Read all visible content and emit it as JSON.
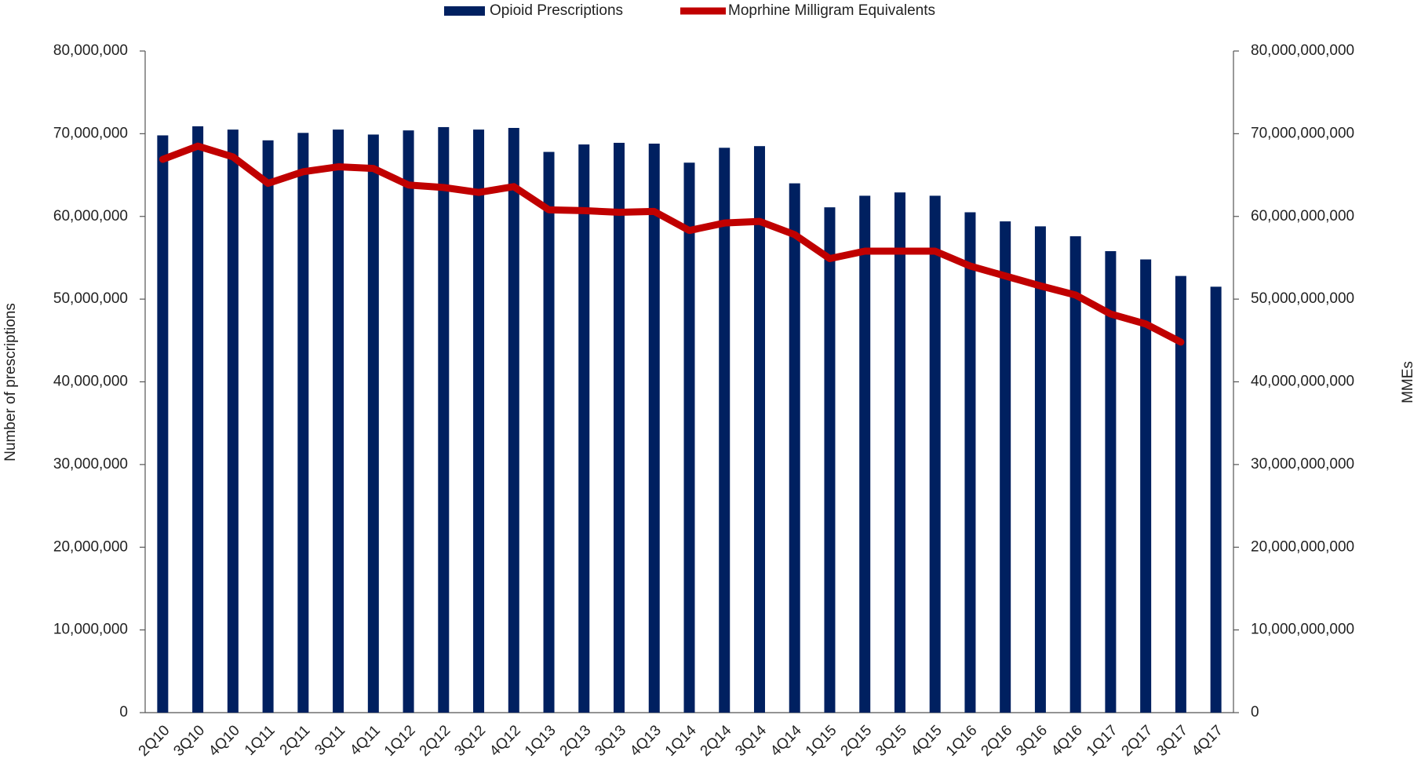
{
  "chart_data": {
    "type": "bar_line",
    "y_label": "Number of prescriptions",
    "y2_label": "MMEs",
    "categories": [
      "2Q10",
      "3Q10",
      "4Q10",
      "1Q11",
      "2Q11",
      "3Q11",
      "4Q11",
      "1Q12",
      "2Q12",
      "3Q12",
      "4Q12",
      "1Q13",
      "2Q13",
      "3Q13",
      "4Q13",
      "1Q14",
      "2Q14",
      "3Q14",
      "4Q14",
      "1Q15",
      "2Q15",
      "3Q15",
      "4Q15",
      "1Q16",
      "2Q16",
      "3Q16",
      "4Q16",
      "1Q17",
      "2Q17",
      "3Q17",
      "4Q17"
    ],
    "series": [
      {
        "name": "Opioid Prescriptions",
        "type": "bar",
        "color": "#002060",
        "axis": "y",
        "values": [
          69800000,
          70900000,
          70500000,
          69200000,
          70100000,
          70500000,
          69900000,
          70400000,
          70800000,
          70500000,
          70700000,
          67800000,
          68700000,
          68900000,
          68800000,
          66500000,
          68300000,
          68500000,
          64000000,
          61100000,
          62500000,
          62900000,
          62500000,
          60500000,
          59400000,
          58800000,
          57600000,
          55800000,
          54800000,
          52800000,
          51500000
        ]
      },
      {
        "name": "Moprhine Milligram Equivalents",
        "type": "line",
        "color": "#c00000",
        "axis": "y2",
        "values": [
          66900000000,
          68500000000,
          67200000000,
          64000000000,
          65400000000,
          66000000000,
          65800000000,
          63800000000,
          63500000000,
          62900000000,
          63600000000,
          60800000000,
          60700000000,
          60500000000,
          60600000000,
          58300000000,
          59200000000,
          59400000000,
          57800000000,
          54900000000,
          55800000000,
          55800000000,
          55800000000,
          54000000000,
          52800000000,
          51600000000,
          50500000000,
          48200000000,
          47000000000,
          44800000000,
          null
        ]
      }
    ],
    "ylim": [
      0,
      80000000
    ],
    "yticks": [
      0,
      {
        "value": 10000000,
        "label": "10,000,000"
      },
      {
        "value": 20000000,
        "label": "20,000,000"
      },
      {
        "value": 30000000,
        "label": "30,000,000"
      },
      {
        "value": 40000000,
        "label": "40,000,000"
      },
      {
        "value": 50000000,
        "label": "50,000,000"
      },
      {
        "value": 60000000,
        "label": "60,000,000"
      },
      {
        "value": 70000000,
        "label": "70,000,000"
      },
      {
        "value": 80000000,
        "label": "80,000,000"
      }
    ],
    "y2lim": [
      0,
      80000000000
    ],
    "y2ticks": [
      0,
      {
        "value": 10000000000,
        "label": "10,000,000,000"
      },
      {
        "value": 20000000000,
        "label": "20,000,000,000"
      },
      {
        "value": 30000000000,
        "label": "30,000,000,000"
      },
      {
        "value": 40000000000,
        "label": "40,000,000,000"
      },
      {
        "value": 50000000000,
        "label": "50,000,000,000"
      },
      {
        "value": 60000000000,
        "label": "60,000,000,000"
      },
      {
        "value": 70000000000,
        "label": "70,000,000,000"
      },
      {
        "value": 80000000000,
        "label": "80,000,000,000"
      }
    ],
    "legend": "top",
    "grid": false
  }
}
